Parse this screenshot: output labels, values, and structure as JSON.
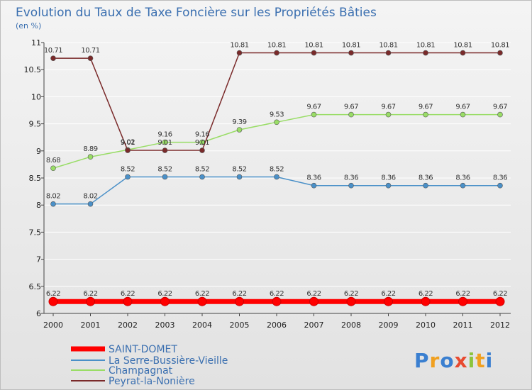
{
  "chart_data": {
    "type": "line",
    "title": "Evolution du Taux de Taxe Foncière sur les Propriétés Bâties",
    "subtitle": "(en %)",
    "xlabel": "",
    "ylabel": "",
    "x": [
      "2000",
      "2001",
      "2002",
      "2003",
      "2004",
      "2005",
      "2006",
      "2007",
      "2008",
      "2009",
      "2010",
      "2011",
      "2012"
    ],
    "ylim": [
      6,
      11
    ],
    "y_ticks": [
      "6",
      "6.5",
      "7",
      "7.5",
      "8",
      "8.5",
      "9",
      "9.5",
      "10",
      "10.5",
      "11"
    ],
    "series": [
      {
        "name": "SAINT-DOMET",
        "color": "#ff0000",
        "values": [
          6.22,
          6.22,
          6.22,
          6.22,
          6.22,
          6.22,
          6.22,
          6.22,
          6.22,
          6.22,
          6.22,
          6.22,
          6.22
        ],
        "labels": [
          "6.22",
          "6.22",
          "6.22",
          "6.22",
          "6.22",
          "6.22",
          "6.22",
          "6.22",
          "6.22",
          "6.22",
          "6.22",
          "6.22",
          "6.22"
        ]
      },
      {
        "name": "La Serre-Bussière-Vieille",
        "color": "#4a90c8",
        "values": [
          8.02,
          8.02,
          8.52,
          8.52,
          8.52,
          8.52,
          8.52,
          8.36,
          8.36,
          8.36,
          8.36,
          8.36,
          8.36
        ],
        "labels": [
          "8.02",
          "8.02",
          "8.52",
          "8.52",
          "8.52",
          "8.52",
          "8.52",
          "8.36",
          "8.36",
          "8.36",
          "8.36",
          "8.36",
          "8.36"
        ]
      },
      {
        "name": "Champagnat",
        "color": "#99dd66",
        "values": [
          8.68,
          8.89,
          9.02,
          9.16,
          9.16,
          9.39,
          9.53,
          9.67,
          9.67,
          9.67,
          9.67,
          9.67,
          9.67
        ],
        "labels": [
          "8.68",
          "8.89",
          "9.02",
          "9.16",
          "9.16",
          "9.39",
          "9.53",
          "9.67",
          "9.67",
          "9.67",
          "9.67",
          "9.67",
          "9.67"
        ]
      },
      {
        "name": "Peyrat-la-Nonière",
        "color": "#7a2a2a",
        "values": [
          10.71,
          10.71,
          9.01,
          9.01,
          9.01,
          10.81,
          10.81,
          10.81,
          10.81,
          10.81,
          10.81,
          10.81,
          10.81
        ],
        "labels": [
          "10.71",
          "10.71",
          "9.01",
          "9.01",
          "9.01",
          "10.81",
          "10.81",
          "10.81",
          "10.81",
          "10.81",
          "10.81",
          "10.81",
          "10.81"
        ]
      }
    ],
    "legend_position": "bottom-left"
  },
  "logo": {
    "text": "Proxiti"
  }
}
